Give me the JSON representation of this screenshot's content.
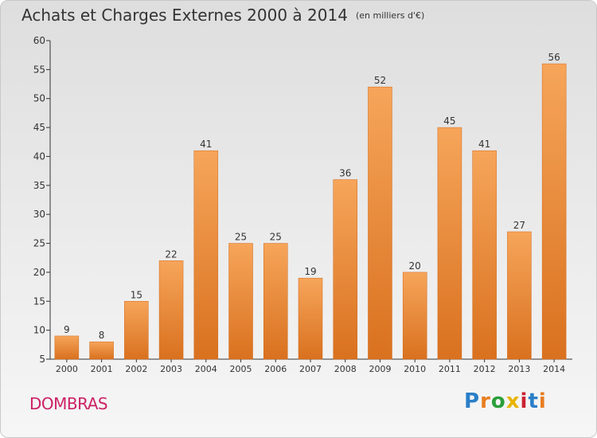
{
  "header": {
    "title": "Achats et Charges Externes 2000 à 2014",
    "subtitle": "(en milliers d'€)"
  },
  "commune": "DOMBRAS",
  "logo": {
    "text": "Proxiti",
    "colors": [
      "#2a7fc8",
      "#e87d1f",
      "#2a9f3a",
      "#e8b400",
      "#cc2233",
      "#2a7fc8",
      "#e87d1f"
    ]
  },
  "colors": {
    "bar_top": "#f6a55a",
    "bar_bottom": "#d9711f",
    "bar_edge": "#d36a1a",
    "axis": "#333333",
    "grid": "#cccccc"
  },
  "chart_data": {
    "type": "bar",
    "categories": [
      "2000",
      "2001",
      "2002",
      "2003",
      "2004",
      "2005",
      "2006",
      "2007",
      "2008",
      "2009",
      "2010",
      "2011",
      "2012",
      "2013",
      "2014"
    ],
    "values": [
      9,
      8,
      15,
      22,
      41,
      25,
      25,
      19,
      36,
      52,
      20,
      45,
      41,
      27,
      56
    ],
    "title": "Achats et Charges Externes 2000 à 2014",
    "subtitle": "(en milliers d'€)",
    "xlabel": "",
    "ylabel": "",
    "ylim": [
      5,
      60
    ],
    "yticks": [
      5,
      10,
      15,
      20,
      25,
      30,
      35,
      40,
      45,
      50,
      55,
      60
    ],
    "grid": false
  }
}
